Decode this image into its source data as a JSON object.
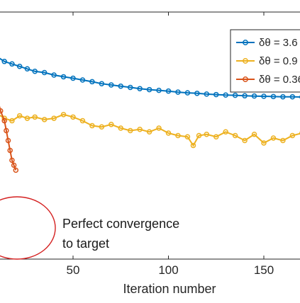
{
  "chart_data": {
    "type": "line",
    "title": "",
    "xlabel": "Iteration number",
    "ylabel": "",
    "x_range": [
      10,
      170
    ],
    "y_range": [
      0,
      1
    ],
    "y_tick_labels_visible": false,
    "grid": false,
    "x_ticks": [
      50,
      100,
      150
    ],
    "x_tick_labels": [
      "50",
      "100",
      "150"
    ],
    "legend_position": "top-right",
    "series": [
      {
        "name": "δθ = 3.6",
        "color": "#0072BD",
        "marker": "circle",
        "points": [
          [
            10,
            0.82
          ],
          [
            14,
            0.8
          ],
          [
            18,
            0.79
          ],
          [
            22,
            0.78
          ],
          [
            26,
            0.77
          ],
          [
            30,
            0.76
          ],
          [
            35,
            0.755
          ],
          [
            40,
            0.745
          ],
          [
            45,
            0.738
          ],
          [
            50,
            0.732
          ],
          [
            55,
            0.725
          ],
          [
            60,
            0.718
          ],
          [
            65,
            0.71
          ],
          [
            70,
            0.705
          ],
          [
            75,
            0.7
          ],
          [
            80,
            0.695
          ],
          [
            85,
            0.69
          ],
          [
            90,
            0.686
          ],
          [
            95,
            0.683
          ],
          [
            100,
            0.68
          ],
          [
            105,
            0.676
          ],
          [
            110,
            0.673
          ],
          [
            115,
            0.671
          ],
          [
            120,
            0.668
          ],
          [
            125,
            0.666
          ],
          [
            130,
            0.664
          ],
          [
            135,
            0.663
          ],
          [
            140,
            0.661
          ],
          [
            145,
            0.66
          ],
          [
            150,
            0.659
          ],
          [
            155,
            0.658
          ],
          [
            160,
            0.657
          ],
          [
            165,
            0.657
          ],
          [
            170,
            0.656
          ]
        ]
      },
      {
        "name": "δθ = 0.9",
        "color": "#EDB120",
        "marker": "circle",
        "points": [
          [
            10,
            0.59
          ],
          [
            14,
            0.57
          ],
          [
            18,
            0.56
          ],
          [
            22,
            0.58
          ],
          [
            26,
            0.57
          ],
          [
            30,
            0.575
          ],
          [
            35,
            0.565
          ],
          [
            40,
            0.57
          ],
          [
            45,
            0.585
          ],
          [
            50,
            0.575
          ],
          [
            55,
            0.56
          ],
          [
            60,
            0.54
          ],
          [
            65,
            0.535
          ],
          [
            70,
            0.545
          ],
          [
            75,
            0.53
          ],
          [
            80,
            0.52
          ],
          [
            85,
            0.525
          ],
          [
            90,
            0.515
          ],
          [
            95,
            0.53
          ],
          [
            100,
            0.51
          ],
          [
            105,
            0.5
          ],
          [
            110,
            0.495
          ],
          [
            113,
            0.46
          ],
          [
            116,
            0.5
          ],
          [
            120,
            0.505
          ],
          [
            125,
            0.495
          ],
          [
            130,
            0.515
          ],
          [
            135,
            0.5
          ],
          [
            140,
            0.48
          ],
          [
            145,
            0.505
          ],
          [
            150,
            0.47
          ],
          [
            155,
            0.49
          ],
          [
            160,
            0.48
          ],
          [
            165,
            0.5
          ],
          [
            170,
            0.51
          ]
        ]
      },
      {
        "name": "δθ = 0.36",
        "color": "#D95319",
        "marker": "circle",
        "points": [
          [
            10,
            0.66
          ],
          [
            12,
            0.6
          ],
          [
            14,
            0.56
          ],
          [
            15,
            0.52
          ],
          [
            16,
            0.48
          ],
          [
            17,
            0.44
          ],
          [
            18,
            0.4
          ],
          [
            19,
            0.38
          ],
          [
            20,
            0.36
          ]
        ]
      }
    ],
    "annotations": [
      {
        "text_lines": [
          "Perfect convergence",
          "to target"
        ],
        "x": 41,
        "y": 0.34
      }
    ]
  }
}
